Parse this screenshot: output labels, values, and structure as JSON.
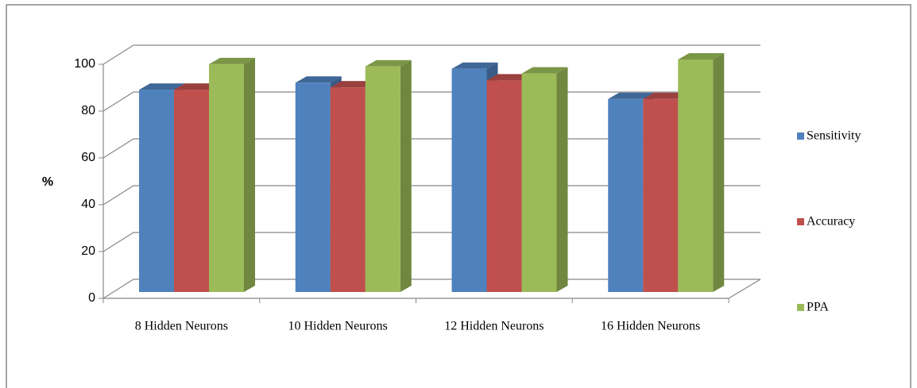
{
  "chart_data": {
    "type": "bar3d",
    "y_label": "%",
    "categories": [
      "8 Hidden Neurons",
      "10 Hidden Neurons",
      "12 Hidden Neurons",
      "16 Hidden Neurons"
    ],
    "series": [
      {
        "name": "Sensitivity",
        "color": "#4f81bd",
        "values": [
          87,
          90,
          96,
          83
        ]
      },
      {
        "name": "Accuracy",
        "color": "#c0504d",
        "values": [
          87,
          88,
          91,
          83
        ]
      },
      {
        "name": "PPA",
        "color": "#9bbb59",
        "values": [
          98,
          97,
          94,
          100
        ]
      }
    ],
    "ylim": [
      0,
      100
    ],
    "yticks": [
      0,
      20,
      40,
      60,
      80,
      100
    ],
    "grid": true,
    "legend": "right"
  }
}
